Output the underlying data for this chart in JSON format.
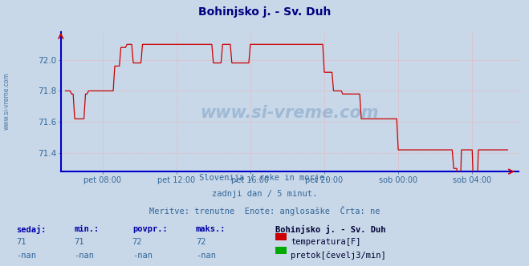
{
  "title": "Bohinjsko j. - Sv. Duh",
  "title_color": "#000080",
  "bg_color": "#c8d8e8",
  "plot_bg_color": "#c8d8e8",
  "line_color": "#cc0000",
  "axis_color": "#0000cc",
  "grid_color": "#ff9999",
  "tick_color": "#336699",
  "ylim": [
    71.28,
    72.18
  ],
  "yticks": [
    71.4,
    71.6,
    71.8,
    72.0
  ],
  "xtick_labels": [
    "pet 08:00",
    "pet 12:00",
    "pet 16:00",
    "pet 20:00",
    "sob 00:00",
    "sob 04:00"
  ],
  "subtitle1": "Slovenija / reke in morje.",
  "subtitle2": "zadnji dan / 5 minut.",
  "subtitle3": "Meritve: trenutne  Enote: anglosaške  Črta: ne",
  "watermark": "www.si-vreme.com",
  "legend_station": "Bohinjsko j. - Sv. Duh",
  "legend_temp": "temperatura[F]",
  "legend_pretok": "pretok[čevelj3/min]",
  "sedaj_label": "sedaj:",
  "min_label": "min.:",
  "povpr_label": "povpr.:",
  "maks_label": "maks.:",
  "sedaj": "71",
  "min_val": "71",
  "povpr": "72",
  "maks": "72",
  "nan_val": "-nan",
  "temp_color": "#cc0000",
  "pretok_color": "#00aa00",
  "n_points": 288,
  "xtick_positions": [
    24,
    72,
    120,
    168,
    216,
    264
  ],
  "watermark_color": "#4477aa",
  "side_label": "www.si-vreme.com",
  "side_label_color": "#336699"
}
